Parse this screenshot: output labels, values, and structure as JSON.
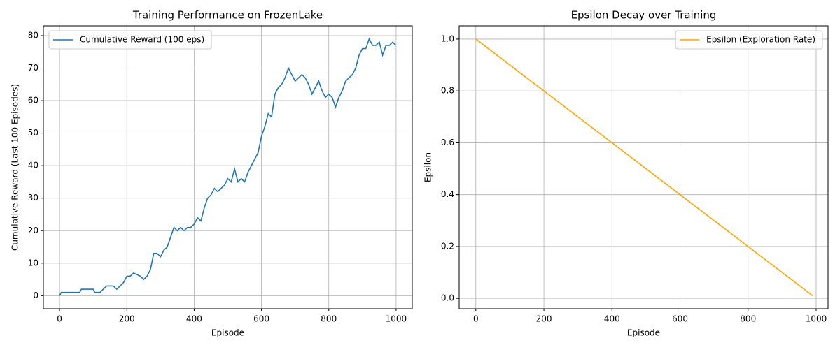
{
  "chart_data": [
    {
      "type": "line",
      "title": "Training Performance on FrozenLake",
      "xlabel": "Episode",
      "ylabel": "Cumulative Reward (Last 100 Episodes)",
      "x": [
        0,
        5,
        20,
        40,
        60,
        65,
        80,
        100,
        105,
        120,
        130,
        140,
        160,
        170,
        180,
        190,
        200,
        210,
        220,
        240,
        250,
        260,
        270,
        280,
        290,
        300,
        310,
        320,
        330,
        340,
        350,
        360,
        370,
        380,
        390,
        400,
        410,
        420,
        430,
        440,
        450,
        460,
        470,
        480,
        490,
        500,
        510,
        520,
        530,
        540,
        550,
        560,
        570,
        580,
        590,
        600,
        610,
        620,
        630,
        640,
        650,
        660,
        670,
        680,
        690,
        700,
        710,
        720,
        730,
        740,
        750,
        760,
        770,
        780,
        790,
        800,
        810,
        820,
        830,
        840,
        850,
        860,
        870,
        880,
        890,
        900,
        910,
        920,
        930,
        940,
        950,
        960,
        970,
        980,
        990,
        999
      ],
      "series": [
        {
          "name": "Cumulative Reward (100 eps)",
          "color": "#1f77b4",
          "values": [
            0,
            1,
            1,
            1,
            1,
            2,
            2,
            2,
            1,
            1,
            2,
            3,
            3,
            2,
            3,
            4,
            6,
            6,
            7,
            6,
            5,
            6,
            8,
            13,
            13,
            12,
            14,
            15,
            18,
            21,
            20,
            21,
            20,
            21,
            21,
            22,
            24,
            23,
            27,
            30,
            31,
            33,
            32,
            33,
            34,
            36,
            35,
            39,
            35,
            36,
            35,
            38,
            40,
            42,
            44,
            49,
            52,
            56,
            55,
            62,
            64,
            65,
            67,
            70,
            68,
            66,
            67,
            68,
            67,
            65,
            62,
            64,
            66,
            63,
            61,
            62,
            61,
            58,
            61,
            63,
            66,
            67,
            68,
            70,
            74,
            76,
            76,
            79,
            77,
            77,
            78,
            74,
            77,
            77,
            78,
            77
          ]
        }
      ],
      "xlim": [
        -48,
        1048
      ],
      "ylim": [
        -4,
        83
      ],
      "xticks": [
        0,
        200,
        400,
        600,
        800,
        1000
      ],
      "yticks": [
        0,
        10,
        20,
        30,
        40,
        50,
        60,
        70,
        80
      ],
      "grid": true,
      "legend": "upper left"
    },
    {
      "type": "line",
      "title": "Epsilon Decay over Training",
      "xlabel": "Episode",
      "ylabel": "Epsilon",
      "x": [
        0,
        990
      ],
      "series": [
        {
          "name": "Epsilon (Exploration Rate)",
          "color": "#ffa500",
          "values": [
            1.0,
            0.01
          ]
        }
      ],
      "xlim": [
        -49,
        1035
      ],
      "ylim": [
        -0.04,
        1.051
      ],
      "xticks": [
        0,
        200,
        400,
        600,
        800,
        1000
      ],
      "yticks": [
        {
          "value": 0,
          "label": "0.0"
        },
        0.2,
        0.4,
        0.6,
        0.8,
        {
          "value": 1,
          "label": "1.0"
        }
      ],
      "grid": true,
      "legend": "upper right"
    }
  ]
}
